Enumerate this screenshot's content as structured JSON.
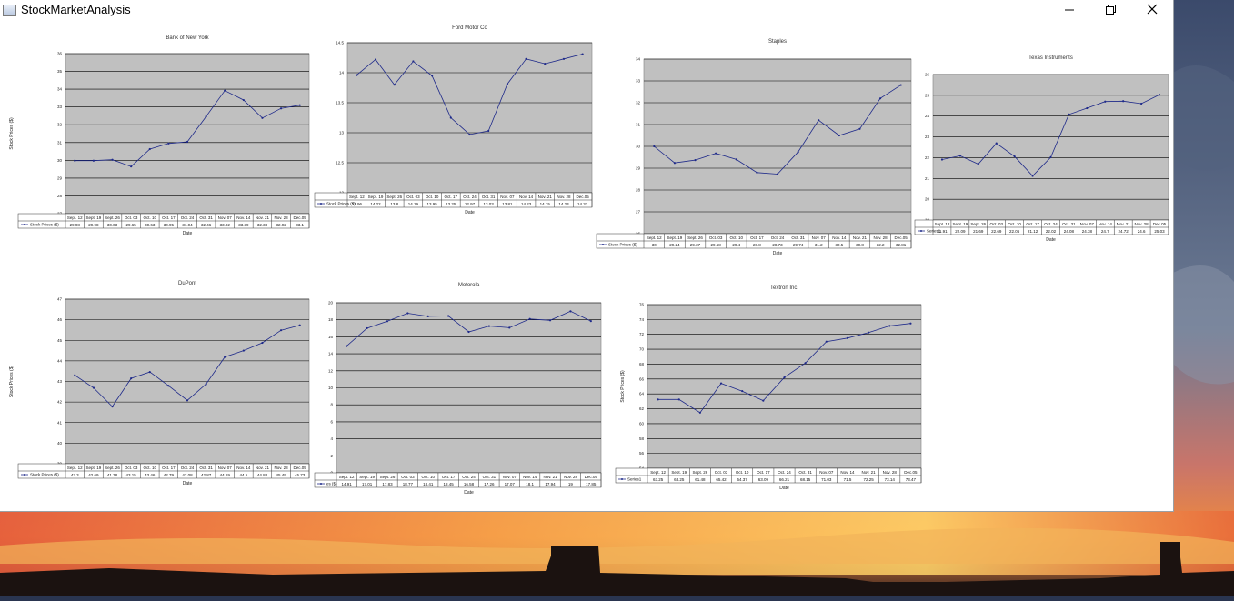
{
  "window": {
    "title": "StockMarketAnalysis"
  },
  "chart_data": [
    {
      "type": "line",
      "title": "Bank of New York",
      "xlabel": "Date",
      "ylabel": "Stock Prices ($)",
      "legend": "Stock Prices ($)",
      "categories": [
        "Sept. 12",
        "Sept. 19",
        "Sept. 26",
        "Oct. 03",
        "Oct. 10",
        "Oct. 17",
        "Oct. 24",
        "Oct. 31",
        "Nov. 07",
        "Nov. 14",
        "Nov. 21",
        "Nov. 28",
        "Dec.05"
      ],
      "values": [
        29.98,
        29.98,
        30.03,
        29.65,
        30.63,
        30.95,
        31.04,
        32.46,
        33.92,
        33.39,
        32.38,
        32.92,
        33.1
      ],
      "ylim": [
        27,
        36
      ],
      "yticks": [
        27,
        28,
        29,
        30,
        31,
        32,
        33,
        34,
        35,
        36
      ]
    },
    {
      "type": "line",
      "title": "Ford Motor Co",
      "xlabel": "Date",
      "ylabel": "",
      "legend": "Stock Prices ($)",
      "categories": [
        "Sept. 12",
        "Sept. 19",
        "Sept. 26",
        "Oct. 03",
        "Oct. 10",
        "Oct. 17",
        "Oct. 24",
        "Oct. 31",
        "Nov. 07",
        "Nov. 14",
        "Nov. 21",
        "Nov. 28",
        "Dec.05"
      ],
      "values": [
        13.96,
        14.22,
        13.8,
        14.19,
        13.95,
        13.25,
        12.97,
        13.03,
        13.81,
        14.23,
        14.15,
        14.23,
        14.31
      ],
      "ylim": [
        12,
        14.5
      ],
      "yticks": [
        12,
        12.5,
        13,
        13.5,
        14,
        14.5
      ]
    },
    {
      "type": "line",
      "title": "Staples",
      "xlabel": "Date",
      "ylabel": "",
      "legend": "Stock Prices ($)",
      "categories": [
        "Sept. 12",
        "Sept. 19",
        "Sept. 26",
        "Oct. 03",
        "Oct. 10",
        "Oct. 17",
        "Oct. 24",
        "Oct. 31",
        "Nov. 07",
        "Nov. 14",
        "Nov. 21",
        "Nov. 28",
        "Dec.05"
      ],
      "values": [
        30,
        29.24,
        29.37,
        29.68,
        29.4,
        28.8,
        28.73,
        29.74,
        31.2,
        30.5,
        30.8,
        32.2,
        32.81
      ],
      "ylim": [
        26,
        34
      ],
      "yticks": [
        26,
        27,
        28,
        29,
        30,
        31,
        32,
        33,
        34
      ]
    },
    {
      "type": "line",
      "title": "Texas Instruments",
      "xlabel": "Date",
      "ylabel": "",
      "legend": "Series1",
      "categories": [
        "Sept. 12",
        "Sept. 19",
        "Sept. 26",
        "Oct. 03",
        "Oct. 10",
        "Oct. 17",
        "Oct. 24",
        "Oct. 31",
        "Nov. 07",
        "Nov. 14",
        "Nov. 21",
        "Nov. 28",
        "Dec.05"
      ],
      "values": [
        21.91,
        22.09,
        21.69,
        22.69,
        22.06,
        21.12,
        22.02,
        24.08,
        24.38,
        24.7,
        24.72,
        24.6,
        25.03
      ],
      "ylim": [
        19,
        26
      ],
      "yticks": [
        19,
        20,
        21,
        22,
        23,
        24,
        25,
        26
      ]
    },
    {
      "type": "line",
      "title": "DuPont",
      "xlabel": "Date",
      "ylabel": "Stock Prices ($)",
      "legend": "Stock Prices ($)",
      "categories": [
        "Sept. 12",
        "Sept. 19",
        "Sept. 26",
        "Oct. 03",
        "Oct. 10",
        "Oct. 17",
        "Oct. 24",
        "Oct. 31",
        "Nov. 07",
        "Nov. 14",
        "Nov. 21",
        "Nov. 28",
        "Dec.05"
      ],
      "values": [
        43.3,
        42.69,
        41.78,
        43.15,
        43.46,
        42.79,
        42.08,
        42.87,
        44.19,
        44.5,
        44.88,
        45.49,
        45.73
      ],
      "ylim": [
        39,
        47
      ],
      "yticks": [
        39,
        40,
        41,
        42,
        43,
        44,
        45,
        46,
        47
      ]
    },
    {
      "type": "line",
      "title": "Motorola",
      "xlabel": "Date",
      "ylabel": "",
      "legend": "es ($)",
      "categories": [
        "Sept. 12",
        "Sept. 19",
        "Sept. 26",
        "Oct. 03",
        "Oct. 10",
        "Oct. 17",
        "Oct. 24",
        "Oct. 31",
        "Nov. 07",
        "Nov. 14",
        "Nov. 21",
        "Nov. 28",
        "Dec.05"
      ],
      "values": [
        14.91,
        17.01,
        17.83,
        18.77,
        18.41,
        18.45,
        16.58,
        17.26,
        17.07,
        18.1,
        17.94,
        19,
        17.85
      ],
      "ylim": [
        0,
        20
      ],
      "yticks": [
        0,
        2,
        4,
        6,
        8,
        10,
        12,
        14,
        16,
        18,
        20
      ]
    },
    {
      "type": "line",
      "title": "Textron Inc.",
      "xlabel": "Date",
      "ylabel": "Stock Prices ($)",
      "legend": "Series1",
      "categories": [
        "Sept. 12",
        "Sept. 19",
        "Sept. 26",
        "Oct. 03",
        "Oct. 10",
        "Oct. 17",
        "Oct. 24",
        "Oct. 31",
        "Nov. 07",
        "Nov. 14",
        "Nov. 21",
        "Nov. 28",
        "Dec.05"
      ],
      "values": [
        63.25,
        63.25,
        61.48,
        65.42,
        64.37,
        63.09,
        66.21,
        68.15,
        71.03,
        71.5,
        72.25,
        73.14,
        73.47
      ],
      "ylim": [
        54,
        76
      ],
      "yticks": [
        54,
        56,
        58,
        60,
        62,
        64,
        66,
        68,
        70,
        72,
        74,
        76
      ]
    }
  ]
}
